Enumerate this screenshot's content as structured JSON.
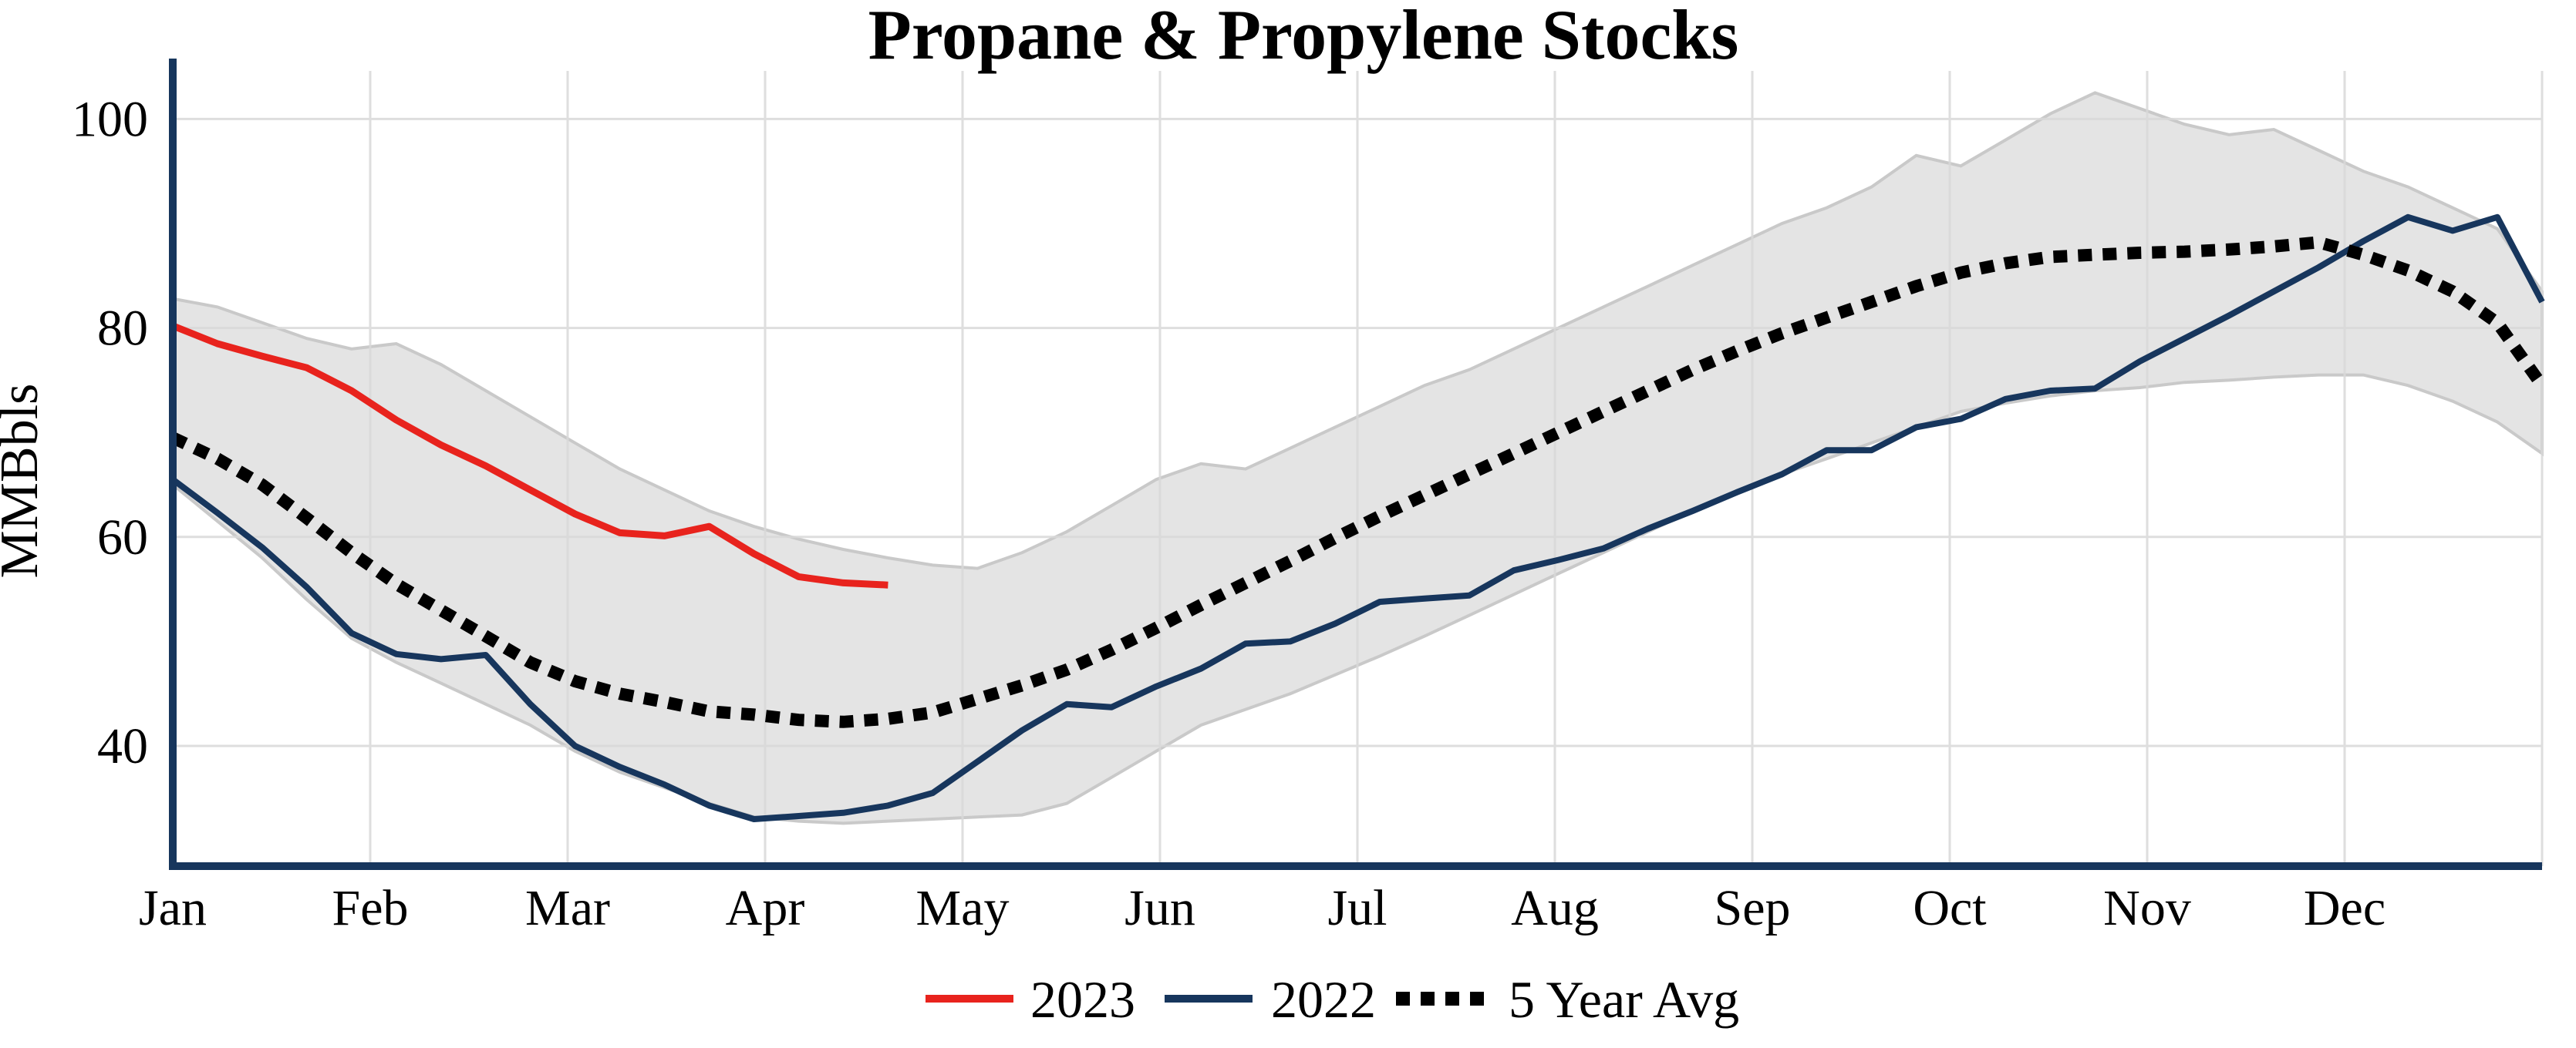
{
  "title": "Propane & Propylene Stocks",
  "y_axis_label": "MMBbls",
  "colors": {
    "line_2023": "#e8231d",
    "line_2022": "#17365d",
    "line_5yr_avg": "#000000",
    "band_fill": "#e4e4e4",
    "band_edge": "#c9c9c9",
    "axis": "#17365d",
    "grid": "#d9d9d9"
  },
  "chart_data": {
    "type": "line",
    "title": "Propane & Propylene Stocks",
    "xlabel": "",
    "ylabel": "MMBbls",
    "x_unit": "weeks (Jan through Dec)",
    "x_tick_labels": [
      "Jan",
      "Feb",
      "Mar",
      "Apr",
      "May",
      "Jun",
      "Jul",
      "Aug",
      "Sep",
      "Oct",
      "Nov",
      "Dec"
    ],
    "y_ticks": [
      40,
      60,
      80,
      100
    ],
    "ylim": [
      28.5,
      104.6
    ],
    "grid": true,
    "legend_position": "bottom-center",
    "series": [
      {
        "name": "2023",
        "color": "#e8231d",
        "style": "solid",
        "values": [
          80.2,
          78.5,
          77.3,
          76.2,
          74.0,
          71.2,
          68.8,
          66.8,
          64.5,
          62.2,
          60.4,
          60.1,
          61.0,
          58.4,
          56.2,
          55.6,
          55.4
        ]
      },
      {
        "name": "2022",
        "color": "#17365d",
        "style": "solid",
        "values": [
          65.5,
          62.3,
          59.0,
          55.2,
          50.8,
          48.8,
          48.3,
          48.7,
          44.0,
          40.0,
          38.0,
          36.3,
          34.3,
          33.0,
          33.3,
          33.6,
          34.3,
          35.5,
          38.5,
          41.5,
          44.0,
          43.7,
          45.7,
          47.4,
          49.8,
          50.0,
          51.7,
          53.8,
          54.1,
          54.4,
          56.8,
          57.8,
          58.9,
          60.8,
          62.5,
          64.3,
          66.0,
          68.3,
          68.3,
          70.5,
          71.3,
          73.2,
          74.0,
          74.2,
          76.8,
          79.0,
          81.2,
          83.5,
          85.8,
          88.3,
          90.6,
          89.3,
          90.6,
          82.5
        ]
      },
      {
        "name": "5 Year Avg",
        "color": "#000000",
        "style": "dotted",
        "values": [
          69.5,
          67.5,
          65.0,
          61.8,
          58.5,
          55.5,
          53.0,
          50.5,
          48.0,
          46.2,
          45.0,
          44.2,
          43.3,
          43.0,
          42.5,
          42.3,
          42.6,
          43.2,
          44.5,
          45.8,
          47.3,
          49.2,
          51.3,
          53.5,
          55.6,
          57.7,
          59.9,
          62.0,
          64.0,
          66.0,
          68.0,
          70.0,
          72.0,
          74.0,
          76.0,
          77.8,
          79.5,
          81.0,
          82.5,
          84.0,
          85.3,
          86.2,
          86.8,
          87.0,
          87.2,
          87.3,
          87.5,
          87.8,
          88.2,
          87.0,
          85.5,
          83.5,
          80.5,
          74.5
        ]
      }
    ],
    "band": {
      "fill": "#e4e4e4",
      "upper": [
        82.8,
        82.0,
        80.5,
        79.0,
        78.0,
        78.5,
        76.5,
        74.0,
        71.5,
        69.0,
        66.5,
        64.5,
        62.5,
        61.0,
        59.8,
        58.8,
        58.0,
        57.3,
        57.0,
        58.5,
        60.5,
        63.0,
        65.5,
        67.0,
        66.5,
        68.5,
        70.5,
        72.5,
        74.5,
        76.0,
        78.0,
        80.0,
        82.0,
        84.0,
        86.0,
        88.0,
        90.0,
        91.5,
        93.5,
        96.5,
        95.5,
        98.0,
        100.5,
        102.5,
        101.0,
        99.5,
        98.5,
        99.0,
        97.0,
        95.0,
        93.5,
        91.5,
        89.5,
        83.5
      ],
      "lower": [
        65.0,
        61.5,
        58.0,
        54.0,
        50.3,
        48.0,
        46.0,
        44.0,
        42.0,
        39.5,
        37.5,
        36.0,
        34.5,
        33.2,
        32.8,
        32.6,
        32.8,
        33.0,
        33.2,
        33.4,
        34.5,
        37.0,
        39.5,
        42.0,
        43.5,
        45.0,
        46.8,
        48.6,
        50.5,
        52.5,
        54.5,
        56.5,
        58.5,
        60.5,
        62.5,
        64.3,
        66.0,
        67.5,
        69.0,
        70.5,
        72.0,
        72.8,
        73.5,
        74.0,
        74.3,
        74.8,
        75.0,
        75.3,
        75.5,
        75.5,
        74.5,
        73.0,
        71.0,
        68.0
      ]
    }
  }
}
